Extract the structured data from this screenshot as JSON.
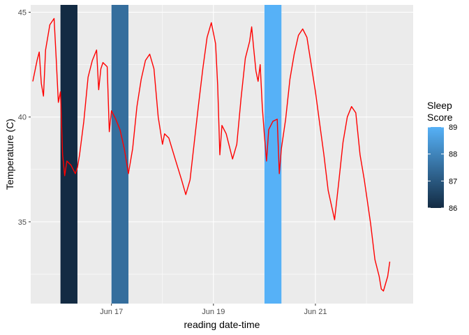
{
  "chart_data": {
    "type": "line",
    "xlabel": "reading date-time",
    "ylabel": "Temperature (C)",
    "x_range": [
      "2021-06-15T10:00",
      "2021-06-22T22:00"
    ],
    "ylim": [
      31.1,
      45.35
    ],
    "grid": true,
    "x_ticks": [
      {
        "x": "2021-06-17T00:00",
        "label": "Jun 17"
      },
      {
        "x": "2021-06-19T00:00",
        "label": "Jun 19"
      },
      {
        "x": "2021-06-21T00:00",
        "label": "Jun 21"
      }
    ],
    "y_ticks": [
      {
        "y": 35,
        "label": "35"
      },
      {
        "y": 40,
        "label": "40"
      },
      {
        "y": 45,
        "label": "45"
      }
    ],
    "sleep_bands": [
      {
        "start": "2021-06-16T00:00",
        "end": "2021-06-16T08:00",
        "score": 86
      },
      {
        "start": "2021-06-17T00:00",
        "end": "2021-06-17T08:00",
        "score": 87.5
      },
      {
        "start": "2021-06-20T00:00",
        "end": "2021-06-20T08:00",
        "score": 89
      }
    ],
    "legend": {
      "title": [
        "Sleep",
        "Score"
      ],
      "min": 86,
      "max": 89,
      "low_color": "#132B43",
      "high_color": "#56B1F7",
      "labels": [
        "86",
        "87",
        "88",
        "89"
      ],
      "position": "right"
    },
    "series": [
      {
        "color": "#ff0000",
        "points": [
          [
            "2021-06-15T11:00",
            41.7
          ],
          [
            "2021-06-15T13:00",
            42.7
          ],
          [
            "2021-06-15T14:00",
            43.1
          ],
          [
            "2021-06-15T15:00",
            41.6
          ],
          [
            "2021-06-15T16:00",
            41.0
          ],
          [
            "2021-06-15T17:00",
            43.2
          ],
          [
            "2021-06-15T19:00",
            44.4
          ],
          [
            "2021-06-15T21:00",
            44.7
          ],
          [
            "2021-06-15T22:00",
            42.8
          ],
          [
            "2021-06-15T23:00",
            40.7
          ],
          [
            "2021-06-16T00:00",
            41.2
          ],
          [
            "2021-06-16T01:00",
            38.2
          ],
          [
            "2021-06-16T02:00",
            37.2
          ],
          [
            "2021-06-16T03:00",
            37.9
          ],
          [
            "2021-06-16T05:00",
            37.7
          ],
          [
            "2021-06-16T07:00",
            37.3
          ],
          [
            "2021-06-16T08:00",
            37.6
          ],
          [
            "2021-06-16T09:00",
            38.2
          ],
          [
            "2021-06-16T11:00",
            39.8
          ],
          [
            "2021-06-16T13:00",
            41.9
          ],
          [
            "2021-06-16T15:00",
            42.7
          ],
          [
            "2021-06-16T17:00",
            43.2
          ],
          [
            "2021-06-16T18:00",
            41.3
          ],
          [
            "2021-06-16T19:00",
            42.3
          ],
          [
            "2021-06-16T20:00",
            42.6
          ],
          [
            "2021-06-16T22:00",
            42.4
          ],
          [
            "2021-06-16T23:00",
            39.3
          ],
          [
            "2021-06-17T00:00",
            40.3
          ],
          [
            "2021-06-17T02:00",
            39.9
          ],
          [
            "2021-06-17T04:00",
            39.4
          ],
          [
            "2021-06-17T06:00",
            38.5
          ],
          [
            "2021-06-17T08:00",
            37.3
          ],
          [
            "2021-06-17T10:00",
            38.5
          ],
          [
            "2021-06-17T12:00",
            40.5
          ],
          [
            "2021-06-17T14:00",
            41.8
          ],
          [
            "2021-06-17T16:00",
            42.7
          ],
          [
            "2021-06-17T18:00",
            43.0
          ],
          [
            "2021-06-17T20:00",
            42.3
          ],
          [
            "2021-06-17T22:00",
            40.0
          ],
          [
            "2021-06-18T00:00",
            38.7
          ],
          [
            "2021-06-18T01:00",
            39.2
          ],
          [
            "2021-06-18T03:00",
            39.0
          ],
          [
            "2021-06-18T06:00",
            38.0
          ],
          [
            "2021-06-18T09:00",
            37.0
          ],
          [
            "2021-06-18T11:00",
            36.3
          ],
          [
            "2021-06-18T13:00",
            37.0
          ],
          [
            "2021-06-18T15:00",
            38.8
          ],
          [
            "2021-06-18T17:00",
            40.6
          ],
          [
            "2021-06-18T19:00",
            42.3
          ],
          [
            "2021-06-18T21:00",
            43.8
          ],
          [
            "2021-06-18T23:00",
            44.5
          ],
          [
            "2021-06-19T01:00",
            43.5
          ],
          [
            "2021-06-19T02:00",
            41.5
          ],
          [
            "2021-06-19T03:00",
            38.2
          ],
          [
            "2021-06-19T04:00",
            39.6
          ],
          [
            "2021-06-19T06:00",
            39.2
          ],
          [
            "2021-06-19T09:00",
            38.0
          ],
          [
            "2021-06-19T11:00",
            38.7
          ],
          [
            "2021-06-19T13:00",
            40.9
          ],
          [
            "2021-06-19T15:00",
            42.8
          ],
          [
            "2021-06-19T17:00",
            43.6
          ],
          [
            "2021-06-19T18:00",
            44.3
          ],
          [
            "2021-06-19T19:00",
            43.2
          ],
          [
            "2021-06-19T20:00",
            42.2
          ],
          [
            "2021-06-19T21:00",
            41.7
          ],
          [
            "2021-06-19T22:00",
            42.5
          ],
          [
            "2021-06-19T23:00",
            40.5
          ],
          [
            "2021-06-20T00:00",
            39.1
          ],
          [
            "2021-06-20T01:00",
            37.9
          ],
          [
            "2021-06-20T02:00",
            39.4
          ],
          [
            "2021-06-20T04:00",
            39.8
          ],
          [
            "2021-06-20T06:00",
            39.9
          ],
          [
            "2021-06-20T07:00",
            37.3
          ],
          [
            "2021-06-20T08:00",
            38.5
          ],
          [
            "2021-06-20T10:00",
            39.9
          ],
          [
            "2021-06-20T12:00",
            41.8
          ],
          [
            "2021-06-20T14:00",
            43.0
          ],
          [
            "2021-06-20T16:00",
            43.9
          ],
          [
            "2021-06-20T18:00",
            44.2
          ],
          [
            "2021-06-20T20:00",
            43.8
          ],
          [
            "2021-06-21T00:00",
            41.2
          ],
          [
            "2021-06-21T02:00",
            39.7
          ],
          [
            "2021-06-21T04:00",
            38.2
          ],
          [
            "2021-06-21T06:00",
            36.5
          ],
          [
            "2021-06-21T09:00",
            35.1
          ],
          [
            "2021-06-21T11:00",
            36.9
          ],
          [
            "2021-06-21T13:00",
            38.8
          ],
          [
            "2021-06-21T15:00",
            40.0
          ],
          [
            "2021-06-21T17:00",
            40.5
          ],
          [
            "2021-06-21T19:00",
            40.2
          ],
          [
            "2021-06-21T21:00",
            38.2
          ],
          [
            "2021-06-21T23:00",
            37.0
          ],
          [
            "2021-06-22T02:00",
            34.9
          ],
          [
            "2021-06-22T04:00",
            33.2
          ],
          [
            "2021-06-22T06:00",
            32.4
          ],
          [
            "2021-06-22T07:00",
            31.8
          ],
          [
            "2021-06-22T08:00",
            31.7
          ],
          [
            "2021-06-22T10:00",
            32.4
          ],
          [
            "2021-06-22T11:00",
            33.1
          ]
        ]
      }
    ]
  }
}
